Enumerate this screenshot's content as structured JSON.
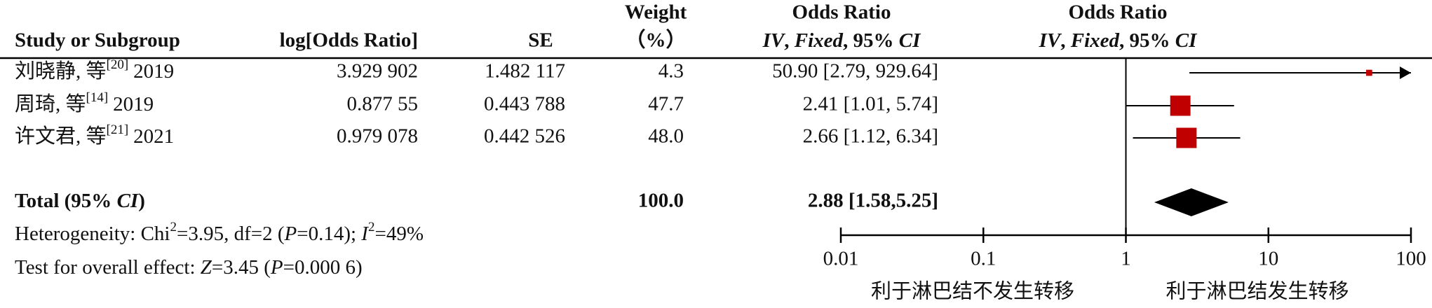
{
  "chart_data": {
    "type": "forest",
    "headers": {
      "study": "Study or Subgroup",
      "log_or": "log[Odds Ratio]",
      "se": "SE",
      "weight": [
        "Weight",
        "（%）"
      ],
      "or_text": [
        "Odds Ratio",
        [
          "IV",
          ", ",
          "Fixed",
          ", 95% ",
          "CI"
        ]
      ],
      "or_plot": [
        "Odds Ratio",
        [
          "IV",
          ", ",
          "Fixed",
          ", 95% ",
          "CI"
        ]
      ]
    },
    "studies": [
      {
        "name": "刘晓静, 等",
        "ref": "[20]",
        "year": "2019"
      },
      {
        "name": "周琦, 等",
        "ref": "[14]",
        "year": "2019"
      },
      {
        "name": "许文君, 等",
        "ref": "[21]",
        "year": "2021"
      }
    ],
    "log_or": [
      "3.929 902",
      "0.877 55",
      "0.979 078"
    ],
    "se": [
      "1.482 117",
      "0.443 788",
      "0.442 526"
    ],
    "weights": [
      4.3,
      47.7,
      48.0
    ],
    "weight_labels": [
      "4.3",
      "47.7",
      "48.0"
    ],
    "or": [
      50.9,
      2.41,
      2.66
    ],
    "ci_low": [
      2.79,
      1.01,
      1.12
    ],
    "ci_high": [
      929.64,
      5.74,
      6.34
    ],
    "value_labels": [
      "50.90 [2.79, 929.64]",
      "2.41 [1.01, 5.74]",
      "2.66 [1.12, 6.34]"
    ],
    "color": "#c00000",
    "total": {
      "label": [
        "Total (95% ",
        "CI",
        ")"
      ],
      "weight": 100.0,
      "weight_label": "100.0",
      "or": 2.88,
      "ci_low": 1.58,
      "ci_high": 5.25,
      "value_label": "2.88 [1.58,5.25]"
    },
    "heterogeneity": [
      "Heterogeneity: Chi",
      "2",
      "=3.95, df=2 (",
      "P",
      "=0.14); ",
      "I",
      "2",
      "=49%"
    ],
    "overall_effect": [
      "Test for overall effect: ",
      "Z",
      "=3.45 (",
      "P",
      "=0.000 6)"
    ],
    "xscale": "log",
    "xlim": [
      0.01,
      100
    ],
    "xticks": [
      0.01,
      0.1,
      1,
      10,
      100
    ],
    "xlabel_left": "利于淋巴结不发生转移",
    "xlabel_right": "利于淋巴结发生转移"
  }
}
